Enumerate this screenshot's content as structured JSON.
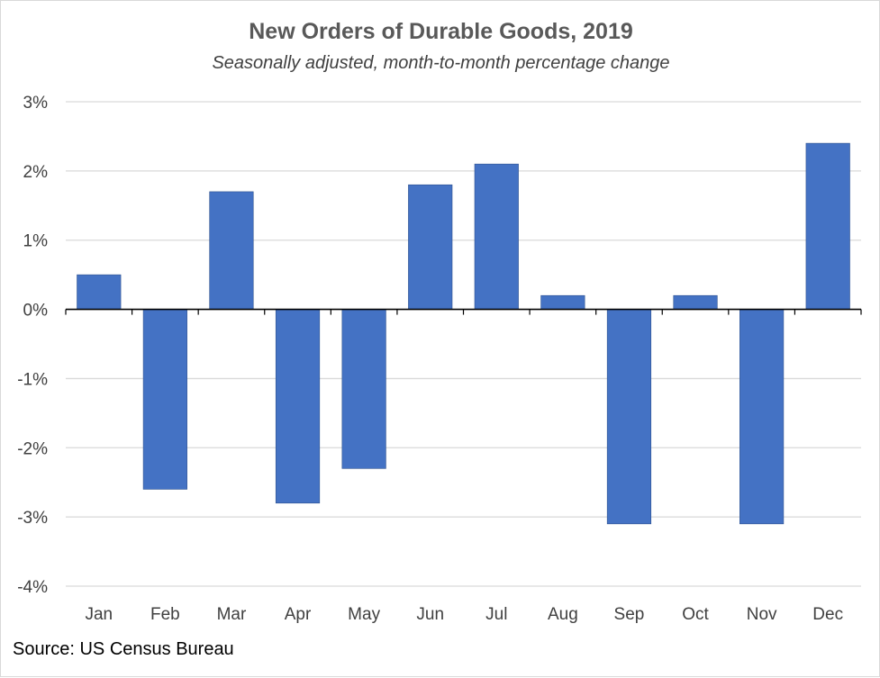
{
  "chart_data": {
    "type": "bar",
    "title": "New Orders of Durable Goods, 2019",
    "subtitle": "Seasonally adjusted, month-to-month percentage change",
    "source": "Source: US Census Bureau",
    "categories": [
      "Jan",
      "Feb",
      "Mar",
      "Apr",
      "May",
      "Jun",
      "Jul",
      "Aug",
      "Sep",
      "Oct",
      "Nov",
      "Dec"
    ],
    "values": [
      0.5,
      -2.6,
      1.7,
      -2.8,
      -2.3,
      1.8,
      2.1,
      0.2,
      -3.1,
      0.2,
      -3.1,
      2.4
    ],
    "unit": "%",
    "ylim": [
      -4,
      3
    ],
    "yticks": [
      -4,
      -3,
      -2,
      -1,
      0,
      1,
      2,
      3
    ],
    "ytick_labels": [
      "-4%",
      "-3%",
      "-2%",
      "-1%",
      "0%",
      "1%",
      "2%",
      "3%"
    ],
    "grid": true,
    "legend": "none",
    "bar_color": "#4472C4",
    "grid_color": "#d9d9d9",
    "axis_color": "#000000"
  }
}
